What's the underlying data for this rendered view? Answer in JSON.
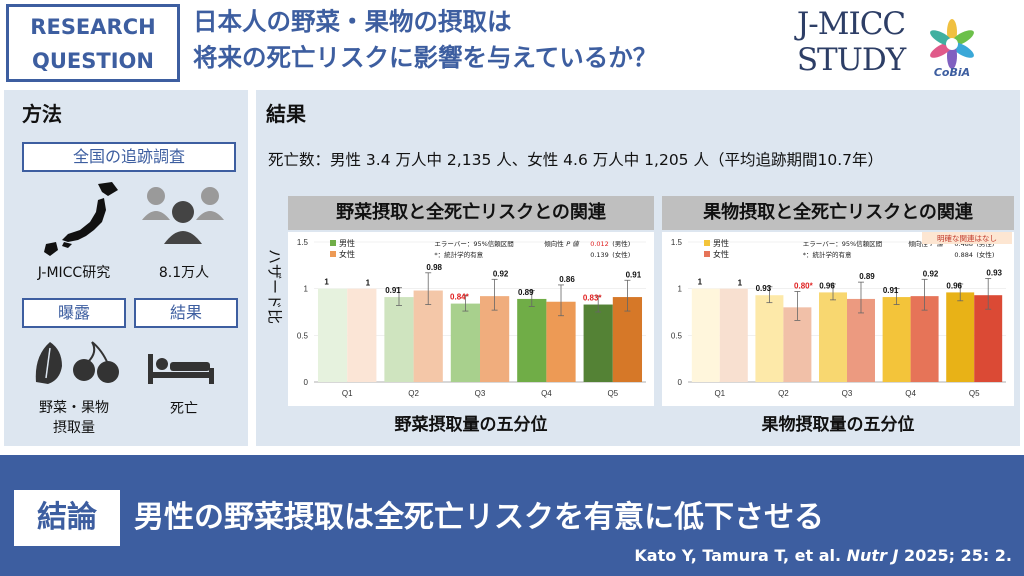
{
  "header": {
    "rq_line1": "RESEARCH",
    "rq_line2": "QUESTION",
    "title_line1": "日本人の野菜・果物の摂取は",
    "title_line2": "将来の死亡リスクに影響を与えているか？",
    "logo_line1": "J-MICC",
    "logo_line2": "STUDY",
    "cobia": "CoBiA"
  },
  "methods": {
    "title": "方法",
    "cohort_label": "全国の追跡調査",
    "study_name": "J-MICC研究",
    "participants": "8.1万人",
    "exposure_label": "曝露",
    "outcome_label": "結果",
    "exposure_line1": "野菜・果物",
    "exposure_line2": "摂取量",
    "outcome_value": "死亡"
  },
  "results": {
    "title": "結果",
    "deaths_text": "死亡数：男性 3.4 万人中 2,135 人、女性 4.6 万人中 1,205 人（平均追跡期間10.7年）",
    "ylabel": "ハザード比"
  },
  "conclusion": {
    "label": "結論",
    "text": "男性の野菜摂取は全死亡リスクを有意に低下させる",
    "citation_pre": "Kato Y, Tamura T, et al. ",
    "citation_journal": "Nutr J",
    "citation_post": " 2025; 25: 2."
  },
  "colors": {
    "accent": "#3d5ea0",
    "panel": "#dde6f0",
    "significant": "#e02020"
  },
  "chart_data": [
    {
      "type": "bar",
      "title": "野菜摂取と全死亡リスクとの関連",
      "xlabel": "野菜摂取量の五分位",
      "categories": [
        "Q1",
        "Q2",
        "Q3",
        "Q4",
        "Q5"
      ],
      "ylim": [
        0,
        1.5
      ],
      "yticks": [
        "0",
        "0.5",
        "1",
        "1.5"
      ],
      "legend": [
        "男性",
        "女性"
      ],
      "note_errorbar": "エラーバー：95%信頼区間",
      "note_sig": "*：統計学的有意",
      "trend_prefix": "傾向性",
      "trend_p_label": "P 値",
      "trend_male_value": "0.012",
      "trend_male_sex": "(男性)",
      "trend_female_value": "0.139",
      "trend_female_sex": "(女性)",
      "series": [
        {
          "name": "男性",
          "values": [
            1,
            0.91,
            0.84,
            0.89,
            0.83
          ],
          "labels": [
            "1",
            "0.91",
            "0.84*",
            "0.89",
            "0.83*"
          ],
          "sig": [
            false,
            false,
            true,
            false,
            true
          ],
          "ci_low": [
            1,
            0.82,
            0.76,
            0.81,
            0.75
          ],
          "ci_high": [
            1,
            1.01,
            0.93,
            0.98,
            0.92
          ],
          "colors": [
            "#e6f2de",
            "#cfe4bf",
            "#a8d08d",
            "#70ad47",
            "#548235"
          ]
        },
        {
          "name": "女性",
          "values": [
            1,
            0.98,
            0.92,
            0.86,
            0.91
          ],
          "labels": [
            "1",
            "0.98",
            "0.92",
            "0.86",
            "0.91"
          ],
          "sig": [
            false,
            false,
            false,
            false,
            false
          ],
          "ci_low": [
            1,
            0.83,
            0.77,
            0.71,
            0.76
          ],
          "ci_high": [
            1,
            1.17,
            1.1,
            1.04,
            1.09
          ],
          "colors": [
            "#fbe5d6",
            "#f4c7a8",
            "#f0ad7d",
            "#ed9a55",
            "#d67828"
          ]
        }
      ]
    },
    {
      "type": "bar",
      "title": "果物摂取と全死亡リスクとの関連",
      "xlabel": "果物摂取量の五分位",
      "badge": "明確な関連はなし",
      "categories": [
        "Q1",
        "Q2",
        "Q3",
        "Q4",
        "Q5"
      ],
      "ylim": [
        0,
        1.5
      ],
      "yticks": [
        "0",
        "0.5",
        "1",
        "1.5"
      ],
      "legend": [
        "男性",
        "女性"
      ],
      "note_errorbar": "エラーバー：95%信頼区間",
      "note_sig": "*：統計学的有意",
      "trend_prefix": "傾向性",
      "trend_p_label": "P 値",
      "trend_male_value": "0.488",
      "trend_male_sex": "(男性)",
      "trend_female_value": "0.884",
      "trend_female_sex": "(女性)",
      "series": [
        {
          "name": "男性",
          "values": [
            1,
            0.93,
            0.96,
            0.91,
            0.96
          ],
          "labels": [
            "1",
            "0.93",
            "0.96",
            "0.91",
            "0.96"
          ],
          "sig": [
            false,
            false,
            false,
            false,
            false
          ],
          "ci_low": [
            1,
            0.85,
            0.88,
            0.83,
            0.87
          ],
          "ci_high": [
            1,
            1.02,
            1.05,
            1.0,
            1.05
          ],
          "colors": [
            "#fff6dc",
            "#fde9a9",
            "#f8d770",
            "#f3c43a",
            "#e8b217"
          ]
        },
        {
          "name": "女性",
          "values": [
            1,
            0.8,
            0.89,
            0.92,
            0.93
          ],
          "labels": [
            "1",
            "0.80*",
            "0.89",
            "0.92",
            "0.93"
          ],
          "sig": [
            false,
            true,
            false,
            false,
            false
          ],
          "ci_low": [
            1,
            0.66,
            0.74,
            0.77,
            0.78
          ],
          "ci_high": [
            1,
            0.97,
            1.07,
            1.1,
            1.11
          ],
          "colors": [
            "#f8e0d0",
            "#f1c0a8",
            "#ec9a80",
            "#e67458",
            "#db4a35"
          ]
        }
      ]
    }
  ]
}
